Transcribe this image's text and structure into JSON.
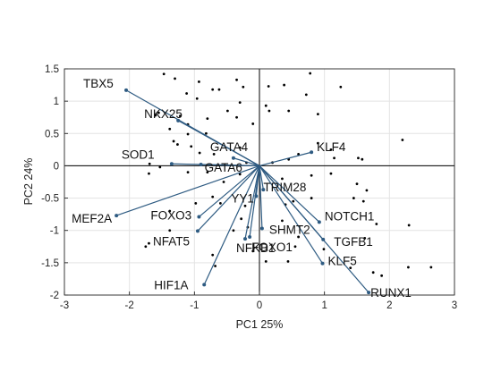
{
  "chart_data": {
    "type": "scatter",
    "subtype": "biplot",
    "xlabel": "PC1 25%",
    "ylabel": "PC2 24%",
    "xlim": [
      -3,
      3
    ],
    "ylim": [
      -2,
      1.5
    ],
    "xticks": [
      -3,
      -2,
      -1,
      0,
      1,
      2,
      3
    ],
    "yticks": [
      -2,
      -1.5,
      -1,
      -0.5,
      0,
      0.5,
      1,
      1.5
    ],
    "grid": true,
    "colors": {
      "vector": "#2e5b82",
      "point": "#000000",
      "grid": "#e3e3e3",
      "axis_lines": "#000000"
    },
    "vectors": [
      {
        "label": "TBX5",
        "x": -2.05,
        "y": 1.17
      },
      {
        "label": "NKX25",
        "x": -1.25,
        "y": 0.7
      },
      {
        "label": "SOD1",
        "x": -1.35,
        "y": 0.03
      },
      {
        "label": "GATA4",
        "x": -0.4,
        "y": 0.12
      },
      {
        "label": "GATA6",
        "x": -0.9,
        "y": 0.02
      },
      {
        "label": "KLF4",
        "x": 0.8,
        "y": 0.21
      },
      {
        "label": "MEF2A",
        "x": -2.2,
        "y": -0.77
      },
      {
        "label": "FOXO3",
        "x": -0.93,
        "y": -0.79
      },
      {
        "label": "YY1",
        "x": -0.05,
        "y": -0.47
      },
      {
        "label": "TRIM28",
        "x": 0.06,
        "y": -0.37
      },
      {
        "label": "NFAT5",
        "x": -0.95,
        "y": -1.01
      },
      {
        "label": "NOTCH1",
        "x": 0.92,
        "y": -0.87
      },
      {
        "label": "SHMT2",
        "x": 0.04,
        "y": -0.97
      },
      {
        "label": "FOXO1",
        "x": -0.15,
        "y": -1.1
      },
      {
        "label": "TGFB1",
        "x": 0.98,
        "y": -1.14
      },
      {
        "label": "NFKB1",
        "x": -0.22,
        "y": -1.13
      },
      {
        "label": "KLF5",
        "x": 0.97,
        "y": -1.51
      },
      {
        "label": "HIF1A",
        "x": -0.85,
        "y": -1.84
      },
      {
        "label": "RUNX1",
        "x": 1.68,
        "y": -1.96
      }
    ],
    "points": [
      [
        -1.47,
        1.42
      ],
      [
        -1.3,
        1.35
      ],
      [
        -0.93,
        1.3
      ],
      [
        -1.12,
        1.12
      ],
      [
        -0.72,
        1.18
      ],
      [
        -0.62,
        1.18
      ],
      [
        -0.35,
        1.33
      ],
      [
        -0.25,
        1.22
      ],
      [
        -0.96,
        1.04
      ],
      [
        -0.3,
        0.98
      ],
      [
        -0.49,
        0.85
      ],
      [
        -1.55,
        0.82
      ],
      [
        -1.6,
        0.78
      ],
      [
        -1.22,
        0.77
      ],
      [
        -0.8,
        0.73
      ],
      [
        -1.1,
        0.64
      ],
      [
        -1.38,
        0.57
      ],
      [
        -1.1,
        0.49
      ],
      [
        -0.82,
        0.5
      ],
      [
        -0.1,
        0.65
      ],
      [
        -0.35,
        0.75
      ],
      [
        0.15,
        0.85
      ],
      [
        0.45,
        0.85
      ],
      [
        0.72,
        1.1
      ],
      [
        0.1,
        0.93
      ],
      [
        0.9,
        0.8
      ],
      [
        1.25,
        1.22
      ],
      [
        0.78,
        1.43
      ],
      [
        0.38,
        1.25
      ],
      [
        0.14,
        1.23
      ],
      [
        -1.05,
        0.3
      ],
      [
        -1.32,
        0.38
      ],
      [
        -1.26,
        0.33
      ],
      [
        -0.92,
        0.2
      ],
      [
        -0.7,
        0.18
      ],
      [
        -0.3,
        0.28
      ],
      [
        -0.2,
        0.05
      ],
      [
        0.2,
        0.05
      ],
      [
        0.45,
        0.1
      ],
      [
        0.9,
        0.35
      ],
      [
        1.1,
        0.25
      ],
      [
        1.15,
        0.12
      ],
      [
        2.2,
        0.4
      ],
      [
        1.52,
        0.12
      ],
      [
        1.58,
        0.1
      ],
      [
        0.6,
        0.18
      ],
      [
        -1.69,
        0.03
      ],
      [
        -1.53,
        -0.02
      ],
      [
        -1.7,
        -0.12
      ],
      [
        -1.1,
        -0.1
      ],
      [
        -0.8,
        -0.1
      ],
      [
        -0.55,
        -0.25
      ],
      [
        -0.3,
        -0.13
      ],
      [
        0.0,
        -0.1
      ],
      [
        0.35,
        -0.2
      ],
      [
        0.8,
        -0.15
      ],
      [
        1.1,
        -0.12
      ],
      [
        1.5,
        -0.28
      ],
      [
        1.65,
        -0.38
      ],
      [
        -0.72,
        -0.48
      ],
      [
        -0.98,
        -0.58
      ],
      [
        -0.6,
        -0.58
      ],
      [
        -0.22,
        -0.62
      ],
      [
        -1.38,
        -0.7
      ],
      [
        -0.28,
        -0.82
      ],
      [
        0.4,
        -0.6
      ],
      [
        0.52,
        -0.55
      ],
      [
        0.8,
        -0.5
      ],
      [
        1.45,
        -0.5
      ],
      [
        1.6,
        -0.55
      ],
      [
        1.8,
        -0.9
      ],
      [
        2.3,
        -0.92
      ],
      [
        1.62,
        -1.12
      ],
      [
        -1.38,
        -1.0
      ],
      [
        -1.7,
        -1.2
      ],
      [
        -1.75,
        -1.25
      ],
      [
        -0.4,
        -1.0
      ],
      [
        -0.18,
        -0.95
      ],
      [
        0.35,
        -0.85
      ],
      [
        -0.1,
        -1.32
      ],
      [
        0.1,
        -1.48
      ],
      [
        -0.72,
        -1.38
      ],
      [
        -0.68,
        -1.55
      ],
      [
        0.6,
        -1.1
      ],
      [
        0.55,
        -1.25
      ],
      [
        0.99,
        -1.29
      ],
      [
        1.4,
        -1.58
      ],
      [
        1.88,
        -1.7
      ],
      [
        2.29,
        -1.57
      ],
      [
        2.64,
        -1.57
      ],
      [
        1.75,
        -1.65
      ],
      [
        0.44,
        -1.48
      ]
    ]
  }
}
